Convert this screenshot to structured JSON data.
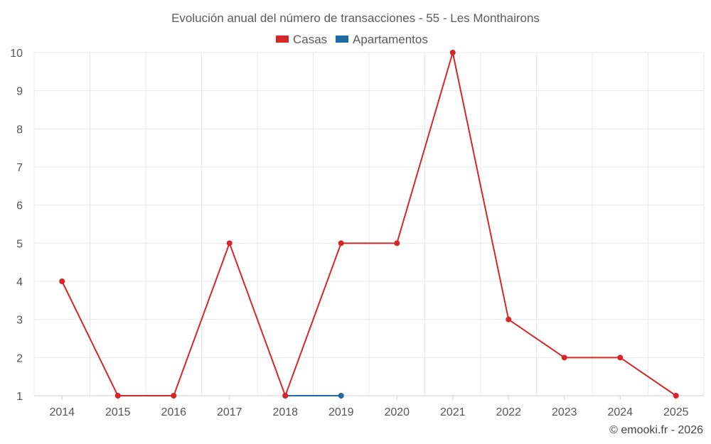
{
  "chart_data": {
    "type": "line",
    "title": "Evolución anual del número de transacciones - 55 - Les Monthairons",
    "categories": [
      "2014",
      "2015",
      "2016",
      "2017",
      "2018",
      "2019",
      "2020",
      "2021",
      "2022",
      "2023",
      "2024",
      "2025"
    ],
    "series": [
      {
        "name": "Casas",
        "color": "#d62728",
        "values": [
          4,
          1,
          1,
          5,
          1,
          5,
          5,
          10,
          3,
          2,
          2,
          1
        ]
      },
      {
        "name": "Apartamentos",
        "color": "#1f6aa5",
        "values": [
          null,
          null,
          null,
          null,
          1,
          1,
          null,
          null,
          null,
          null,
          null,
          null
        ]
      }
    ],
    "yticks": [
      "1",
      "2",
      "3",
      "4",
      "5",
      "6",
      "7",
      "8",
      "9",
      "10"
    ],
    "ylim": [
      1,
      10
    ],
    "xlabel": "",
    "ylabel": "",
    "grid": true,
    "legend": "top-center"
  },
  "credit": "© emooki.fr - 2026"
}
